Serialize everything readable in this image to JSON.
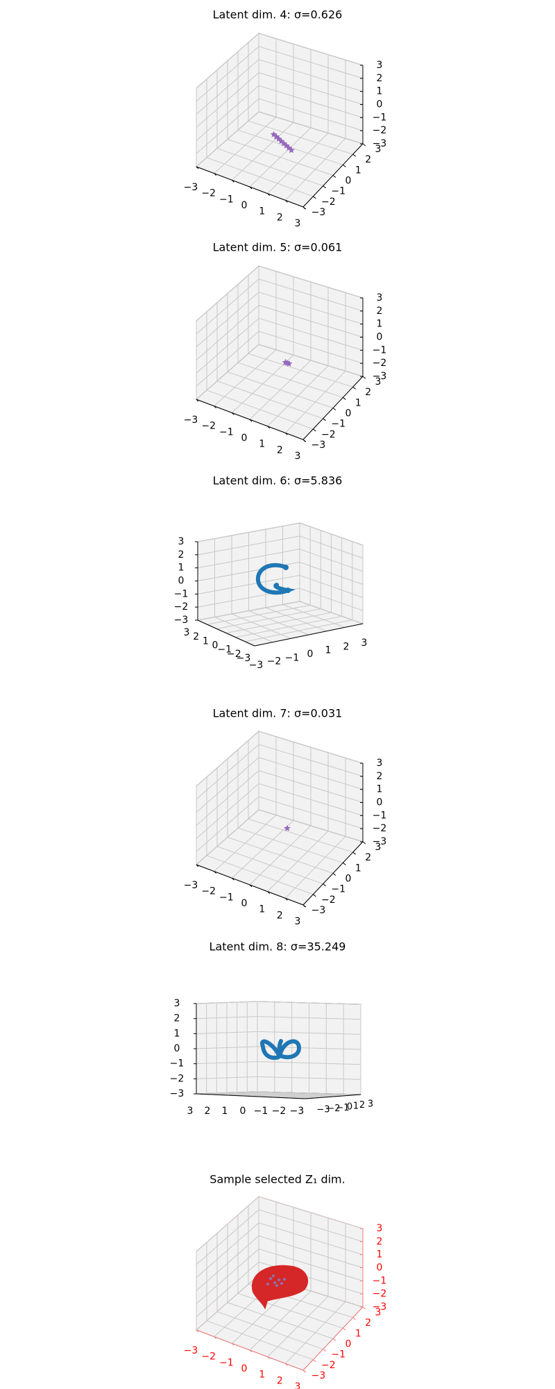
{
  "figure": {
    "background": "#ffffff",
    "pane_color": "#f2f2f2",
    "grid_color": "#c8c8c8",
    "axis_color": "#000000",
    "highlight_color": "#ff0000"
  },
  "chart_data": [
    {
      "type": "scatter",
      "projection": "3d",
      "title": "Latent dim. 4: σ=0.626",
      "xlim": [
        -3,
        3
      ],
      "ylim": [
        -3,
        3
      ],
      "zlim": [
        -3,
        3
      ],
      "x_ticks": [
        "−3",
        "−2",
        "−1",
        "0",
        "1",
        "2",
        "3"
      ],
      "y_ticks": [
        "−3",
        "−2",
        "−1",
        "0",
        "1",
        "2",
        "3"
      ],
      "z_ticks": [
        "−3",
        "−2",
        "−1",
        "0",
        "1",
        "2",
        "3"
      ],
      "grid": true,
      "series": [
        {
          "color": "#9467bd",
          "marker": "star",
          "x": [
            -0.7,
            -0.5,
            -0.3,
            -0.1,
            0.1,
            0.3,
            0.5,
            0.7
          ],
          "y": [
            0.5,
            0.4,
            0.3,
            0.2,
            0.1,
            0.0,
            -0.1,
            -0.2
          ],
          "z": [
            -1.8,
            -1.8,
            -1.8,
            -1.8,
            -1.8,
            -1.8,
            -1.8,
            -1.8
          ]
        }
      ]
    },
    {
      "type": "scatter",
      "projection": "3d",
      "title": "Latent dim. 5: σ=0.061",
      "xlim": [
        -3,
        3
      ],
      "ylim": [
        -3,
        3
      ],
      "zlim": [
        -3,
        3
      ],
      "x_ticks": [
        "−3",
        "−2",
        "−1",
        "0",
        "1",
        "2",
        "3"
      ],
      "y_ticks": [
        "−3",
        "−2",
        "−1",
        "0",
        "1",
        "2",
        "3"
      ],
      "z_ticks": [
        "−3",
        "−2",
        "−1",
        "0",
        "1",
        "2",
        "3"
      ],
      "grid": true,
      "series": [
        {
          "color": "#9467bd",
          "marker": "star",
          "x": [
            -0.1,
            0.0,
            0.1
          ],
          "y": [
            0.6,
            0.6,
            0.6
          ],
          "z": [
            -1.2,
            -1.2,
            -1.2
          ]
        }
      ]
    },
    {
      "type": "line",
      "projection": "3d",
      "title": "Latent dim. 6: σ=5.836",
      "xlim": [
        -3,
        3
      ],
      "ylim": [
        -3,
        3
      ],
      "zlim": [
        -3,
        3
      ],
      "x_ticks": [
        "−3",
        "−2",
        "−1",
        "0",
        "1",
        "2",
        "3"
      ],
      "y_ticks": [
        "−3",
        "−2",
        "−1",
        "0",
        "1",
        "2",
        "3"
      ],
      "z_ticks": [
        "−3",
        "−2",
        "−1",
        "0",
        "1",
        "2",
        "3"
      ],
      "grid": true,
      "series": [
        {
          "color": "#1f77b4",
          "shape": "C-shaped loop"
        }
      ]
    },
    {
      "type": "scatter",
      "projection": "3d",
      "title": "Latent dim. 7: σ=0.031",
      "xlim": [
        -3,
        3
      ],
      "ylim": [
        -3,
        3
      ],
      "zlim": [
        -3,
        3
      ],
      "x_ticks": [
        "−3",
        "−2",
        "−1",
        "0",
        "1",
        "2",
        "3"
      ],
      "y_ticks": [
        "−3",
        "−2",
        "−1",
        "0",
        "1",
        "2",
        "3"
      ],
      "z_ticks": [
        "−3",
        "−2",
        "−1",
        "0",
        "1",
        "2",
        "3"
      ],
      "grid": true,
      "series": [
        {
          "color": "#9467bd",
          "marker": "star",
          "x": [
            0.0
          ],
          "y": [
            0.6
          ],
          "z": [
            -1.2
          ]
        }
      ]
    },
    {
      "type": "line",
      "projection": "3d",
      "title": "Latent dim. 8: σ=35.249",
      "xlim": [
        -3,
        3
      ],
      "ylim": [
        -3,
        3
      ],
      "zlim": [
        -3,
        3
      ],
      "x_ticks": [
        "3",
        "2",
        "1",
        "0",
        "−1",
        "−2",
        "−3"
      ],
      "y_ticks": [
        "−3",
        "−2",
        "−1",
        "0",
        "1",
        "2",
        "3"
      ],
      "z_ticks": [
        "−3",
        "−2",
        "−1",
        "0",
        "1",
        "2",
        "3"
      ],
      "grid": true,
      "series": [
        {
          "color": "#1f77b4",
          "shape": "figure-eight loop"
        }
      ]
    },
    {
      "type": "scatter",
      "projection": "3d",
      "title": "Sample selected Z₁ dim.",
      "xlim": [
        -3,
        3
      ],
      "ylim": [
        -3,
        3
      ],
      "zlim": [
        -3,
        3
      ],
      "x_ticks": [
        "−3",
        "−2",
        "−1",
        "0",
        "1",
        "2",
        "3"
      ],
      "y_ticks": [
        "−3",
        "−2",
        "−1",
        "0",
        "1",
        "2",
        "3"
      ],
      "z_ticks": [
        "−3",
        "−2",
        "−1",
        "0",
        "1",
        "2",
        "3"
      ],
      "tick_color": "#ff0000",
      "grid": true,
      "series": [
        {
          "color": "#d62728",
          "shape": "filled blob"
        },
        {
          "color": "#7f7fbf",
          "shape": "small scatter"
        }
      ]
    }
  ]
}
